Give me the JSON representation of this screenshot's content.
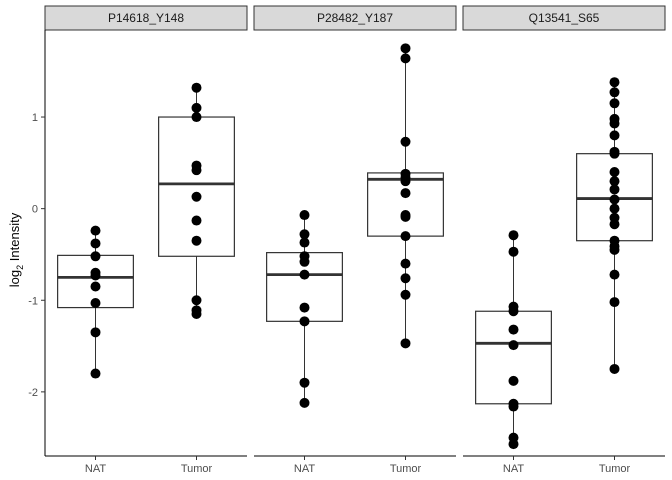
{
  "chart_data": {
    "type": "boxplot",
    "ylabel_main": "log",
    "ylabel_sub": "2",
    "ylabel_rest": " Intensity",
    "ylim": [
      -2.7,
      1.95
    ],
    "yticks": [
      -2,
      -1,
      0,
      1
    ],
    "ytick_labels": [
      "-2",
      "-1",
      "0",
      "1"
    ],
    "categories": [
      "NAT",
      "Tumor"
    ],
    "grid": false,
    "colors": {
      "point": "#000000",
      "box_stroke": "#333333",
      "strip_fill": "#d9d9d9",
      "axis": "#000000"
    },
    "panels": [
      {
        "title": "P14618_Y148",
        "groups": [
          {
            "category": "NAT",
            "q1": -1.08,
            "median": -0.75,
            "q3": -0.51,
            "whisker_low": -1.8,
            "whisker_high": -0.24,
            "points": [
              -0.24,
              -0.38,
              -0.52,
              -0.7,
              -0.73,
              -0.85,
              -1.03,
              -1.35,
              -1.8
            ]
          },
          {
            "category": "Tumor",
            "q1": -0.52,
            "median": 0.27,
            "q3": 1.0,
            "whisker_low": -1.15,
            "whisker_high": 1.32,
            "points": [
              1.32,
              1.1,
              1.0,
              0.47,
              0.42,
              0.13,
              -0.13,
              -0.35,
              -1.0,
              -1.11,
              -1.15
            ]
          }
        ]
      },
      {
        "title": "P28482_Y187",
        "groups": [
          {
            "category": "NAT",
            "q1": -1.23,
            "median": -0.72,
            "q3": -0.48,
            "whisker_low": -2.12,
            "whisker_high": -0.07,
            "points": [
              -0.07,
              -0.28,
              -0.37,
              -0.52,
              -0.58,
              -0.72,
              -1.08,
              -1.23,
              -1.9,
              -2.12
            ]
          },
          {
            "category": "Tumor",
            "q1": -0.3,
            "median": 0.32,
            "q3": 0.39,
            "whisker_low": -1.47,
            "whisker_high": 1.75,
            "points": [
              1.75,
              1.64,
              0.73,
              0.38,
              0.34,
              0.3,
              0.17,
              -0.07,
              -0.09,
              -0.3,
              -0.6,
              -0.76,
              -0.94,
              -1.47
            ]
          }
        ]
      },
      {
        "title": "Q13541_S65",
        "groups": [
          {
            "category": "NAT",
            "q1": -2.13,
            "median": -1.47,
            "q3": -1.12,
            "whisker_low": -2.57,
            "whisker_high": -0.29,
            "points": [
              -0.29,
              -0.47,
              -1.07,
              -1.12,
              -1.32,
              -1.49,
              -1.88,
              -2.13,
              -2.16,
              -2.5,
              -2.57
            ]
          },
          {
            "category": "Tumor",
            "q1": -0.35,
            "median": 0.11,
            "q3": 0.6,
            "whisker_low": -1.75,
            "whisker_high": 1.38,
            "points": [
              1.38,
              1.27,
              1.15,
              0.98,
              0.93,
              0.8,
              0.62,
              0.6,
              0.4,
              0.3,
              0.21,
              0.1,
              0.0,
              -0.1,
              -0.17,
              -0.35,
              -0.41,
              -0.45,
              -0.72,
              -1.02,
              -1.75
            ]
          }
        ]
      }
    ]
  }
}
